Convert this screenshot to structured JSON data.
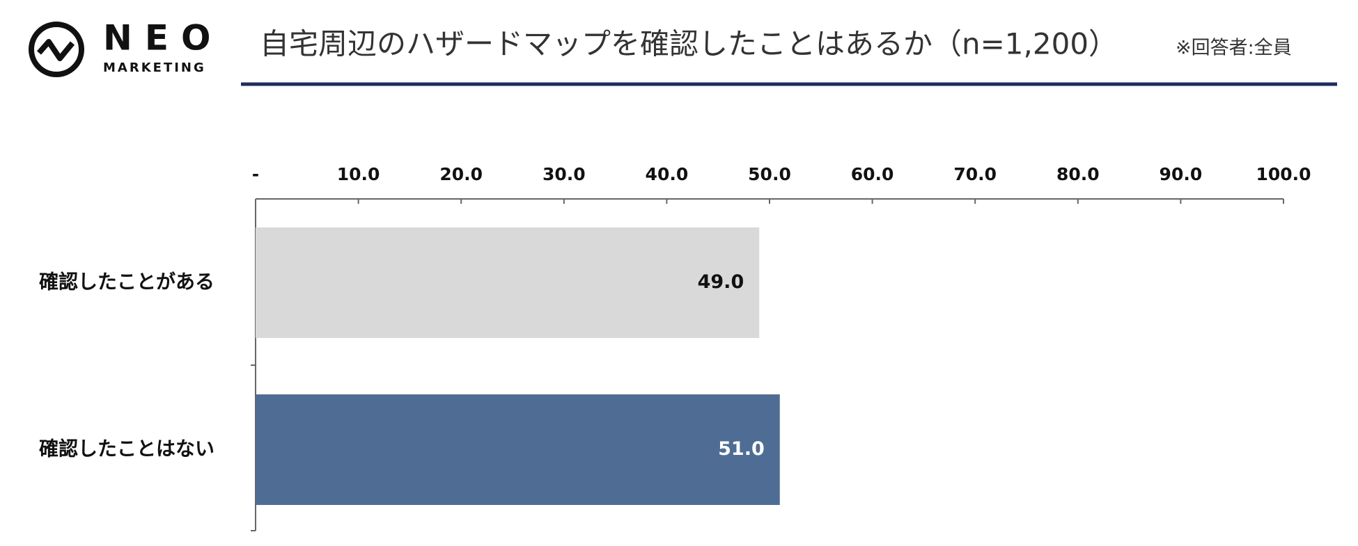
{
  "logo": {
    "name": "NEO",
    "sub": "MARKETING"
  },
  "chart_data": {
    "type": "hbar",
    "title": "自宅周辺のハザードマップを確認したことはあるか（n=1,200）",
    "subtitle": "※回答者:全員",
    "categories": [
      "確認したことがある",
      "確認したことはない"
    ],
    "values": [
      49,
      51
    ],
    "value_labels": [
      "49.0",
      "51.0"
    ],
    "colors": [
      "#d9d9d9",
      "#4f6d94"
    ],
    "xlim": [
      0,
      100
    ],
    "xticks": [
      {
        "value": 0,
        "label": "-"
      },
      {
        "value": 10,
        "label": "10.0"
      },
      {
        "value": 20,
        "label": "20.0"
      },
      {
        "value": 30,
        "label": "30.0"
      },
      {
        "value": 40,
        "label": "40.0"
      },
      {
        "value": 50,
        "label": "50.0"
      },
      {
        "value": 60,
        "label": "60.0"
      },
      {
        "value": 70,
        "label": "70.0"
      },
      {
        "value": 80,
        "label": "80.0"
      },
      {
        "value": 90,
        "label": "90.0"
      },
      {
        "value": 100,
        "label": "100.0"
      }
    ]
  }
}
